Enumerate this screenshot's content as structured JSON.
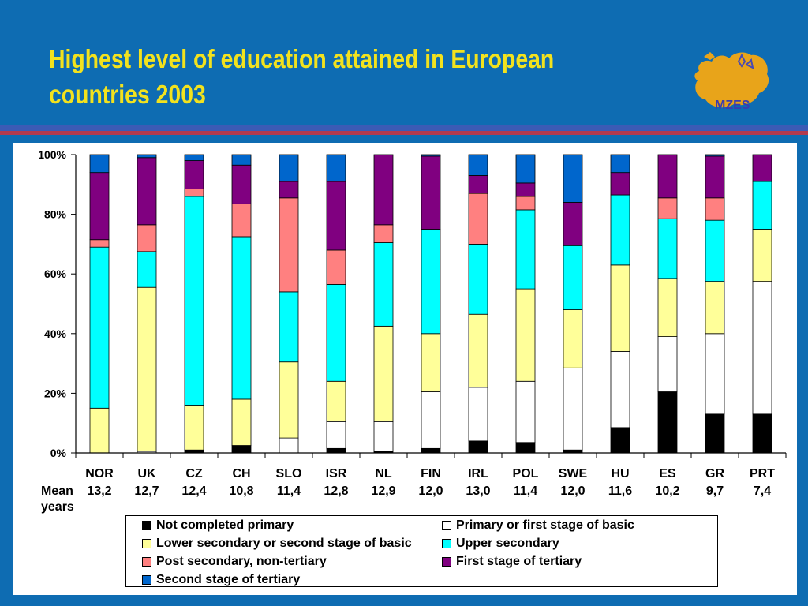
{
  "slide": {
    "title": "Highest level of education attained in European countries 2003",
    "logo_text": "MZES",
    "colors": {
      "background": "#0e6cb2",
      "title": "#f2e21e",
      "band_blue": "#3b5bb5",
      "band_red": "#b23a4e"
    }
  },
  "chart_data": {
    "type": "bar",
    "stacked": true,
    "percent": true,
    "categories": [
      "NOR",
      "UK",
      "CZ",
      "CH",
      "SLO",
      "ISR",
      "NL",
      "FIN",
      "IRL",
      "POL",
      "SWE",
      "HU",
      "ES",
      "GR",
      "PRT"
    ],
    "mean_years_label": "Mean years",
    "mean_years": [
      "13,2",
      "12,7",
      "12,4",
      "10,8",
      "11,4",
      "12,8",
      "12,9",
      "12,0",
      "13,0",
      "11,4",
      "12,0",
      "11,6",
      "10,2",
      "9,7",
      "7,4"
    ],
    "ylim": [
      0,
      100
    ],
    "yticks": [
      "0%",
      "20%",
      "40%",
      "60%",
      "80%",
      "100%"
    ],
    "legend_position": "bottom",
    "series": [
      {
        "name": "Not completed primary",
        "color": "#000000",
        "values": [
          0,
          0,
          1,
          2.5,
          0,
          1.5,
          0.5,
          1.5,
          4,
          3.5,
          1,
          8.5,
          20.5,
          13,
          13
        ]
      },
      {
        "name": "Primary or first stage of basic",
        "color": "#ffffff",
        "values": [
          0,
          0.5,
          0,
          0,
          5,
          9,
          10,
          19,
          18,
          20.5,
          27.5,
          25.5,
          18.5,
          27,
          44.5
        ]
      },
      {
        "name": "Lower secondary or second stage of basic",
        "color": "#ffff99",
        "values": [
          15,
          55,
          15,
          15.5,
          25.5,
          13.5,
          32,
          19.5,
          24.5,
          31,
          19.5,
          29,
          19.5,
          17.5,
          17.5
        ]
      },
      {
        "name": "Upper secondary",
        "color": "#00ffff",
        "values": [
          54,
          12,
          70,
          54.5,
          23.5,
          32.5,
          28,
          35,
          23.5,
          26.5,
          21.5,
          23.5,
          20,
          20.5,
          16
        ]
      },
      {
        "name": "Post secondary, non-tertiary",
        "color": "#ff8080",
        "values": [
          2.5,
          9,
          2.5,
          11,
          31.5,
          11.5,
          6,
          0,
          17,
          4.5,
          0,
          0,
          7,
          7.5,
          0
        ]
      },
      {
        "name": "First stage of tertiary",
        "color": "#800080",
        "values": [
          22.5,
          22.5,
          9.5,
          13,
          5.5,
          23,
          23.5,
          24.5,
          6,
          4.5,
          14.5,
          7.5,
          14.5,
          14,
          9
        ]
      },
      {
        "name": "Second stage of tertiary",
        "color": "#0066cc",
        "values": [
          6,
          1,
          2,
          3.5,
          9,
          9,
          0,
          0.5,
          7,
          9.5,
          16,
          6,
          0,
          0.5,
          0
        ]
      }
    ]
  }
}
